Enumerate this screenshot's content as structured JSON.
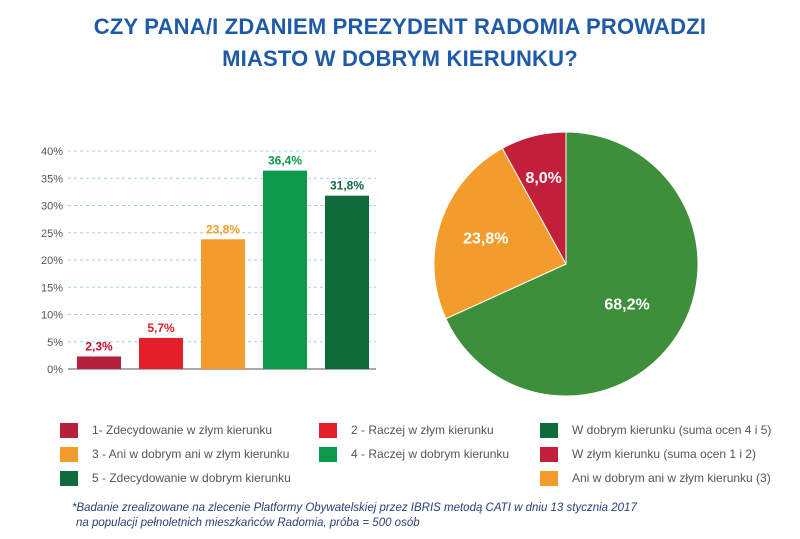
{
  "title": {
    "line1": "CZY PANA/I ZDANIEM PREZYDENT RADOMIA PROWADZI",
    "line2": "MIASTO W DOBRYM KIERUNKU?"
  },
  "chart_data": [
    {
      "type": "bar",
      "categories": [
        "1- Zdecydowanie w złym kierunku",
        "2 - Raczej w złym kierunku",
        "3 - Ani w dobrym ani w złym kierunku",
        "4 - Raczej w dobrym kierunku",
        "5 - Zdecydowanie w dobrym kierunku"
      ],
      "values": [
        2.3,
        5.7,
        23.8,
        36.4,
        31.8
      ],
      "value_labels": [
        "2,3%",
        "5,7%",
        "23,8%",
        "36,4%",
        "31,8%"
      ],
      "colors": [
        "#b5203a",
        "#e32029",
        "#f39c2c",
        "#0a9a4a",
        "#0f6b3a"
      ],
      "label_colors": [
        "#c8102e",
        "#e32029",
        "#f39c2c",
        "#0a9a4a",
        "#0f6b3a"
      ],
      "ylim": [
        0,
        40
      ],
      "yticks": [
        0,
        5,
        10,
        15,
        20,
        25,
        30,
        35,
        40
      ],
      "ytick_labels": [
        "0%",
        "5%",
        "10%",
        "15%",
        "20%",
        "25%",
        "30%",
        "35%",
        "40%"
      ],
      "grid": true,
      "xlabel": "",
      "ylabel": ""
    },
    {
      "type": "pie",
      "labels": [
        "W dobrym kierunku (suma ocen 4 i 5)",
        "Ani w dobrym ani w złym kierunku (3)",
        "W złym kierunku (suma ocen 1 i 2)"
      ],
      "values": [
        68.2,
        23.8,
        8.0
      ],
      "value_labels": [
        "68,2%",
        "23,8%",
        "8,0%"
      ],
      "colors": [
        "#3d8f3b",
        "#f39c2c",
        "#c21f3a"
      ]
    }
  ],
  "legend": [
    {
      "label": "1- Zdecydowanie w złym kierunku",
      "color": "#b5203a"
    },
    {
      "label": "2 - Raczej w złym kierunku",
      "color": "#e32029"
    },
    {
      "label": "W dobrym kierunku (suma ocen 4 i 5)",
      "color": "#0f6b3a"
    },
    {
      "label": "3 - Ani w dobrym ani w złym kierunku",
      "color": "#f39c2c"
    },
    {
      "label": "4 - Raczej w dobrym kierunku",
      "color": "#0a9a4a"
    },
    {
      "label": "W złym kierunku (suma ocen 1 i 2)",
      "color": "#c21f3a"
    },
    {
      "label": "5 - Zdecydowanie w dobrym kierunku",
      "color": "#0f6b3a"
    },
    {
      "label": "Ani w dobrym ani w złym kierunku (3)",
      "color": "#f39c2c"
    }
  ],
  "footnote": {
    "line1": "*Badanie zrealizowane na zlecenie Platformy Obywatelskiej przez IBRIS metodą CATI w dniu 13 stycznia 2017",
    "line2": "na populacji pełnoletnich mieszkańców Radomia, próba = 500 osób"
  }
}
